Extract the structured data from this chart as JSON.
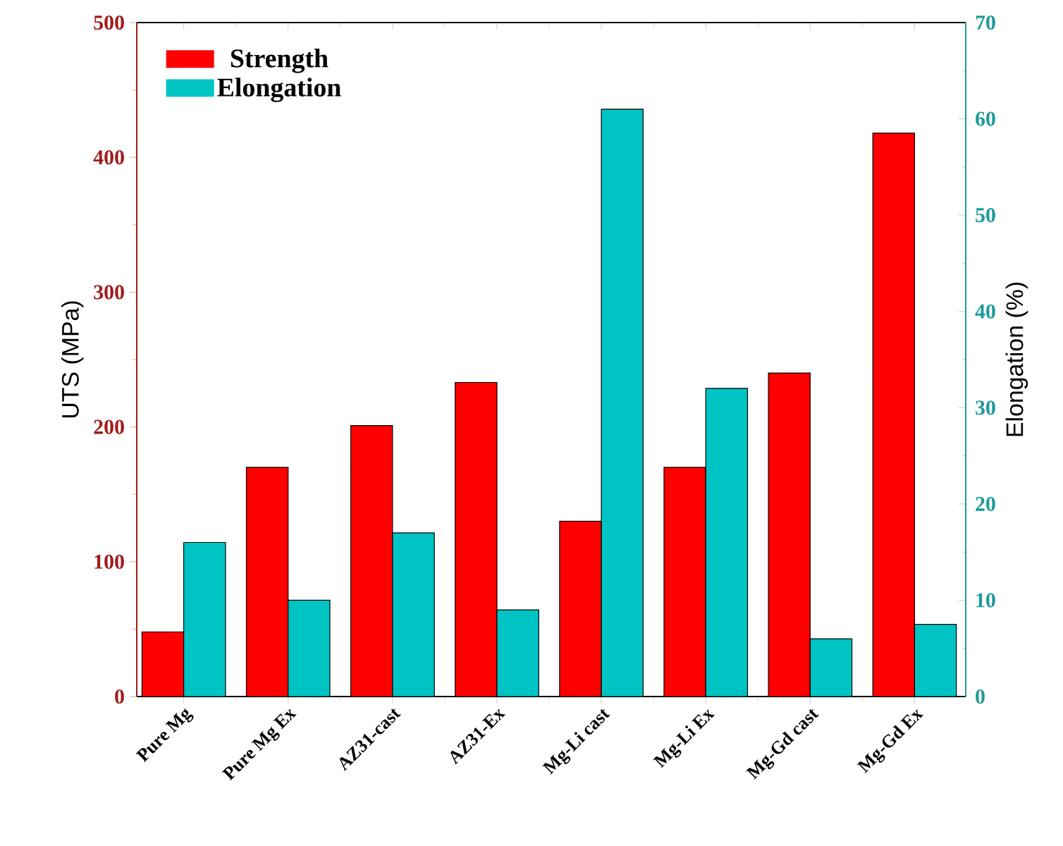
{
  "chart_data": {
    "type": "bar",
    "ylabel": "UTS (MPa)",
    "y2label": "Elongation (%)",
    "categories": [
      "Pure Mg",
      "Pure Mg Ex",
      "AZ31-cast",
      "AZ31-Ex",
      "Mg-Li cast",
      "Mg-Li Ex",
      "Mg-Gd cast",
      "Mg-Gd Ex"
    ],
    "series": [
      {
        "name": "Strength",
        "color": "#ff0000",
        "values": [
          48,
          170,
          201,
          233,
          130,
          170,
          240,
          418
        ]
      },
      {
        "name": "Elongation",
        "color": "#00c4c4",
        "axis": "y2",
        "values": [
          16,
          10,
          17,
          9,
          61,
          32,
          6,
          7.5
        ]
      }
    ],
    "ylim": [
      0,
      500
    ],
    "yticks": [
      0,
      100,
      200,
      300,
      400,
      500
    ],
    "y2lim": [
      0,
      70
    ],
    "y2ticks": [
      0,
      10,
      20,
      30,
      40,
      50,
      60,
      70
    ],
    "legend": "top left",
    "grid": false
  }
}
